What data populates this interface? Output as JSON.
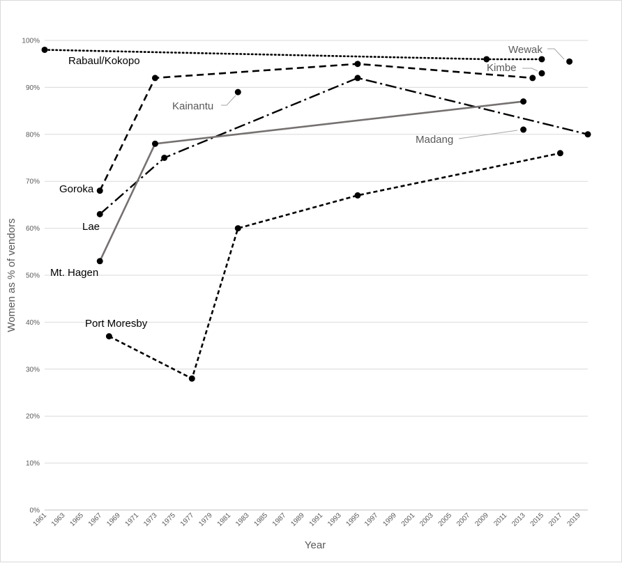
{
  "chart_data": {
    "type": "line",
    "xlabel": "Year",
    "ylabel": "Women as % of vendors",
    "xlim": [
      1961,
      2020
    ],
    "ylim": [
      0,
      100
    ],
    "y_ticks": [
      "0%",
      "10%",
      "20%",
      "30%",
      "40%",
      "50%",
      "60%",
      "70%",
      "80%",
      "90%",
      "100%"
    ],
    "x_ticks": [
      "1961",
      "1963",
      "1965",
      "1967",
      "1969",
      "1971",
      "1973",
      "1975",
      "1977",
      "1979",
      "1981",
      "1983",
      "1985",
      "1987",
      "1989",
      "1991",
      "1993",
      "1995",
      "1997",
      "1999",
      "2001",
      "2003",
      "2005",
      "2007",
      "2009",
      "2011",
      "2013",
      "2015",
      "2017",
      "2019"
    ],
    "grid": "horizontal",
    "series": [
      {
        "name": "Rabaul/Kokopo",
        "style": "dotted",
        "color": "#000000",
        "points": [
          [
            1961,
            98
          ],
          [
            2009,
            96
          ],
          [
            2015,
            96
          ]
        ]
      },
      {
        "name": "Goroka",
        "style": "dashed",
        "color": "#000000",
        "points": [
          [
            1967,
            68
          ],
          [
            1973,
            92
          ],
          [
            1995,
            95
          ],
          [
            2014,
            92
          ]
        ]
      },
      {
        "name": "Lae",
        "style": "dashdot",
        "color": "#000000",
        "points": [
          [
            1967,
            63
          ],
          [
            1974,
            75
          ],
          [
            1995,
            92
          ],
          [
            2020,
            80
          ]
        ]
      },
      {
        "name": "Mt. Hagen",
        "style": "solid",
        "color": "#767171",
        "points": [
          [
            1967,
            53
          ],
          [
            1973,
            78
          ],
          [
            2013,
            87
          ]
        ]
      },
      {
        "name": "Port Moresby",
        "style": "short-dash",
        "color": "#000000",
        "points": [
          [
            1968,
            37
          ],
          [
            1977,
            28
          ],
          [
            1982,
            60
          ],
          [
            1995,
            67
          ],
          [
            2017,
            76
          ]
        ]
      },
      {
        "name": "Kainantu",
        "style": "point",
        "color": "#000000",
        "points": [
          [
            1982,
            89
          ]
        ]
      },
      {
        "name": "Madang",
        "style": "point",
        "color": "#000000",
        "points": [
          [
            2013,
            81
          ]
        ]
      },
      {
        "name": "Kimbe",
        "style": "point",
        "color": "#000000",
        "points": [
          [
            2015,
            93
          ]
        ]
      },
      {
        "name": "Wewak",
        "style": "point",
        "color": "#000000",
        "points": [
          [
            2018,
            95.5
          ]
        ]
      }
    ]
  }
}
